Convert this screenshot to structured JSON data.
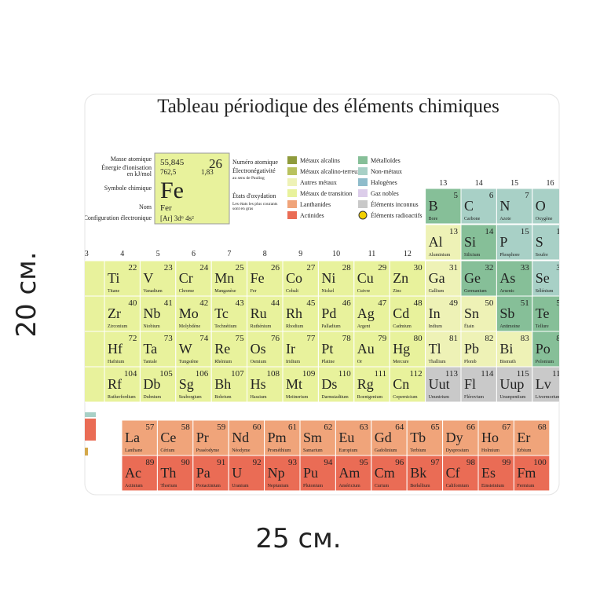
{
  "title": "Tableau périodique des éléments chimiques",
  "dimensions": {
    "height": "20 см.",
    "width": "25 см."
  },
  "key": {
    "mass": "55,845",
    "number": "26",
    "ionization": "762,5",
    "electronegativity": "1,83",
    "symbol": "Fe",
    "name": "Fer",
    "configuration": "[Ar] 3d⁶ 4s²",
    "color": "#e8f29c",
    "left_labels": [
      "Masse atomique",
      "Énergie d'ionisation",
      "en kJ/mol",
      "Symbole chimique",
      "Nom",
      "Configuration électronique"
    ],
    "right_labels": [
      "Numéro atomique",
      "Électronégativité",
      "au sens de Pauling",
      "États d'oxydation",
      "Les états les plus courants",
      "sont en gras"
    ]
  },
  "legend": [
    {
      "label": "Métaux alcalins",
      "color": "#8f9b3c"
    },
    {
      "label": "Métaux alcalino-terreux",
      "color": "#b9c25e"
    },
    {
      "label": "Autres métaux",
      "color": "#eef2b6"
    },
    {
      "label": "Métaux de transition",
      "color": "#e8f29c"
    },
    {
      "label": "Lanthanides",
      "color": "#f0a47a"
    },
    {
      "label": "Actinides",
      "color": "#ea6c55"
    },
    {
      "label": "Métalloïdes",
      "color": "#86bf98"
    },
    {
      "label": "Non-métaux",
      "color": "#a8d0c6"
    },
    {
      "label": "Halogènes",
      "color": "#8fbccb"
    },
    {
      "label": "Gaz nobles",
      "color": "#dccdea"
    },
    {
      "label": "Éléments inconnus",
      "color": "#c9c9c9"
    },
    {
      "label": "Éléments radioactifs",
      "color": "#f2d000"
    }
  ],
  "group_labels_low": [
    "3",
    "4",
    "5",
    "6",
    "7",
    "8",
    "9",
    "10",
    "11",
    "12"
  ],
  "group_labels_high": [
    "13",
    "14",
    "15",
    "16"
  ],
  "periods": [
    {
      "elements": [
        {
          "number": 5,
          "symbol": "B",
          "name": "Bore",
          "color": "#86bf98"
        },
        {
          "number": 6,
          "symbol": "C",
          "name": "Carbone",
          "color": "#a8d0c6"
        },
        {
          "number": 7,
          "symbol": "N",
          "name": "Azote",
          "color": "#a8d0c6"
        },
        {
          "number": 8,
          "symbol": "O",
          "name": "Oxygène",
          "color": "#a8d0c6"
        }
      ]
    },
    {
      "elements": [
        {
          "number": 13,
          "symbol": "Al",
          "name": "Aluminium",
          "color": "#eef2b6"
        },
        {
          "number": 14,
          "symbol": "Si",
          "name": "Silicium",
          "color": "#86bf98"
        },
        {
          "number": 15,
          "symbol": "P",
          "name": "Phosphore",
          "color": "#a8d0c6"
        },
        {
          "number": 16,
          "symbol": "S",
          "name": "Soufre",
          "color": "#a8d0c6"
        }
      ]
    },
    {
      "elements": [
        {
          "number": 22,
          "symbol": "Ti",
          "name": "Titane",
          "color": "#e8f29c"
        },
        {
          "number": 23,
          "symbol": "V",
          "name": "Vanadium",
          "color": "#e8f29c"
        },
        {
          "number": 24,
          "symbol": "Cr",
          "name": "Chrome",
          "color": "#e8f29c"
        },
        {
          "number": 25,
          "symbol": "Mn",
          "name": "Manganèse",
          "color": "#e8f29c"
        },
        {
          "number": 26,
          "symbol": "Fe",
          "name": "Fer",
          "color": "#e8f29c"
        },
        {
          "number": 27,
          "symbol": "Co",
          "name": "Cobalt",
          "color": "#e8f29c"
        },
        {
          "number": 28,
          "symbol": "Ni",
          "name": "Nickel",
          "color": "#e8f29c"
        },
        {
          "number": 29,
          "symbol": "Cu",
          "name": "Cuivre",
          "color": "#e8f29c"
        },
        {
          "number": 30,
          "symbol": "Zn",
          "name": "Zinc",
          "color": "#e8f29c"
        },
        {
          "number": 31,
          "symbol": "Ga",
          "name": "Gallium",
          "color": "#eef2b6"
        },
        {
          "number": 32,
          "symbol": "Ge",
          "name": "Germanium",
          "color": "#86bf98"
        },
        {
          "number": 33,
          "symbol": "As",
          "name": "Arsenic",
          "color": "#86bf98"
        },
        {
          "number": 34,
          "symbol": "Se",
          "name": "Sélénium",
          "color": "#a8d0c6"
        }
      ]
    },
    {
      "elements": [
        {
          "number": 40,
          "symbol": "Zr",
          "name": "Zirconium",
          "color": "#e8f29c"
        },
        {
          "number": 41,
          "symbol": "Nb",
          "name": "Niobium",
          "color": "#e8f29c"
        },
        {
          "number": 42,
          "symbol": "Mo",
          "name": "Molybdène",
          "color": "#e8f29c"
        },
        {
          "number": 43,
          "symbol": "Tc",
          "name": "Technétium",
          "color": "#e8f29c"
        },
        {
          "number": 44,
          "symbol": "Ru",
          "name": "Ruthénium",
          "color": "#e8f29c"
        },
        {
          "number": 45,
          "symbol": "Rh",
          "name": "Rhodium",
          "color": "#e8f29c"
        },
        {
          "number": 46,
          "symbol": "Pd",
          "name": "Palladium",
          "color": "#e8f29c"
        },
        {
          "number": 47,
          "symbol": "Ag",
          "name": "Argent",
          "color": "#e8f29c"
        },
        {
          "number": 48,
          "symbol": "Cd",
          "name": "Cadmium",
          "color": "#e8f29c"
        },
        {
          "number": 49,
          "symbol": "In",
          "name": "Indium",
          "color": "#eef2b6"
        },
        {
          "number": 50,
          "symbol": "Sn",
          "name": "Étain",
          "color": "#eef2b6"
        },
        {
          "number": 51,
          "symbol": "Sb",
          "name": "Antimoine",
          "color": "#86bf98"
        },
        {
          "number": 52,
          "symbol": "Te",
          "name": "Tellure",
          "color": "#86bf98"
        }
      ]
    },
    {
      "elements": [
        {
          "number": 72,
          "symbol": "Hf",
          "name": "Hafnium",
          "color": "#e8f29c"
        },
        {
          "number": 73,
          "symbol": "Ta",
          "name": "Tantale",
          "color": "#e8f29c"
        },
        {
          "number": 74,
          "symbol": "W",
          "name": "Tungstène",
          "color": "#e8f29c"
        },
        {
          "number": 75,
          "symbol": "Re",
          "name": "Rhénium",
          "color": "#e8f29c"
        },
        {
          "number": 76,
          "symbol": "Os",
          "name": "Osmium",
          "color": "#e8f29c"
        },
        {
          "number": 77,
          "symbol": "Ir",
          "name": "Iridium",
          "color": "#e8f29c"
        },
        {
          "number": 78,
          "symbol": "Pt",
          "name": "Platine",
          "color": "#e8f29c"
        },
        {
          "number": 79,
          "symbol": "Au",
          "name": "Or",
          "color": "#e8f29c"
        },
        {
          "number": 80,
          "symbol": "Hg",
          "name": "Mercure",
          "color": "#e8f29c"
        },
        {
          "number": 81,
          "symbol": "Tl",
          "name": "Thallium",
          "color": "#eef2b6"
        },
        {
          "number": 82,
          "symbol": "Pb",
          "name": "Plomb",
          "color": "#eef2b6"
        },
        {
          "number": 83,
          "symbol": "Bi",
          "name": "Bismuth",
          "color": "#eef2b6"
        },
        {
          "number": 84,
          "symbol": "Po",
          "name": "Polonium",
          "color": "#86bf98"
        }
      ]
    },
    {
      "elements": [
        {
          "number": 104,
          "symbol": "Rf",
          "name": "Rutherfordium",
          "color": "#e8f29c"
        },
        {
          "number": 105,
          "symbol": "Db",
          "name": "Dubnium",
          "color": "#e8f29c"
        },
        {
          "number": 106,
          "symbol": "Sg",
          "name": "Seaborgium",
          "color": "#e8f29c"
        },
        {
          "number": 107,
          "symbol": "Bh",
          "name": "Bohrium",
          "color": "#e8f29c"
        },
        {
          "number": 108,
          "symbol": "Hs",
          "name": "Hassium",
          "color": "#e8f29c"
        },
        {
          "number": 109,
          "symbol": "Mt",
          "name": "Meitnerium",
          "color": "#e8f29c"
        },
        {
          "number": 110,
          "symbol": "Ds",
          "name": "Darmstadtium",
          "color": "#e8f29c"
        },
        {
          "number": 111,
          "symbol": "Rg",
          "name": "Roentgenium",
          "color": "#e8f29c"
        },
        {
          "number": 112,
          "symbol": "Cn",
          "name": "Copernicium",
          "color": "#e8f29c"
        },
        {
          "number": 113,
          "symbol": "Uut",
          "name": "Ununtrium",
          "color": "#c9c9c9"
        },
        {
          "number": 114,
          "symbol": "Fl",
          "name": "Flérovium",
          "color": "#c9c9c9"
        },
        {
          "number": 115,
          "symbol": "Uup",
          "name": "Ununpentium",
          "color": "#c9c9c9"
        },
        {
          "number": 116,
          "symbol": "Lv",
          "name": "Livermorium",
          "color": "#c9c9c9"
        }
      ]
    },
    {
      "elements": [
        {
          "number": 57,
          "symbol": "La",
          "name": "Lanthane",
          "color": "#f0a47a"
        },
        {
          "number": 58,
          "symbol": "Ce",
          "name": "Cérium",
          "color": "#f0a47a"
        },
        {
          "number": 59,
          "symbol": "Pr",
          "name": "Praséodyme",
          "color": "#f0a47a"
        },
        {
          "number": 60,
          "symbol": "Nd",
          "name": "Néodyme",
          "color": "#f0a47a"
        },
        {
          "number": 61,
          "symbol": "Pm",
          "name": "Prométhium",
          "color": "#f0a47a"
        },
        {
          "number": 62,
          "symbol": "Sm",
          "name": "Samarium",
          "color": "#f0a47a"
        },
        {
          "number": 63,
          "symbol": "Eu",
          "name": "Europium",
          "color": "#f0a47a"
        },
        {
          "number": 64,
          "symbol": "Gd",
          "name": "Gadolinium",
          "color": "#f0a47a"
        },
        {
          "number": 65,
          "symbol": "Tb",
          "name": "Terbium",
          "color": "#f0a47a"
        },
        {
          "number": 66,
          "symbol": "Dy",
          "name": "Dysprosium",
          "color": "#f0a47a"
        },
        {
          "number": 67,
          "symbol": "Ho",
          "name": "Holmium",
          "color": "#f0a47a"
        },
        {
          "number": 68,
          "symbol": "Er",
          "name": "Erbium",
          "color": "#f0a47a"
        }
      ]
    },
    {
      "elements": [
        {
          "number": 89,
          "symbol": "Ac",
          "name": "Actinium",
          "color": "#ea6c55"
        },
        {
          "number": 90,
          "symbol": "Th",
          "name": "Thorium",
          "color": "#ea6c55"
        },
        {
          "number": 91,
          "symbol": "Pa",
          "name": "Protactinium",
          "color": "#ea6c55"
        },
        {
          "number": 92,
          "symbol": "U",
          "name": "Uranium",
          "color": "#ea6c55"
        },
        {
          "number": 93,
          "symbol": "Np",
          "name": "Neptunium",
          "color": "#ea6c55"
        },
        {
          "number": 94,
          "symbol": "Pu",
          "name": "Plutonium",
          "color": "#ea6c55"
        },
        {
          "number": 95,
          "symbol": "Am",
          "name": "Américium",
          "color": "#ea6c55"
        },
        {
          "number": 96,
          "symbol": "Cm",
          "name": "Curium",
          "color": "#ea6c55"
        },
        {
          "number": 97,
          "symbol": "Bk",
          "name": "Berkélium",
          "color": "#ea6c55"
        },
        {
          "number": 98,
          "symbol": "Cf",
          "name": "Californium",
          "color": "#ea6c55"
        },
        {
          "number": 99,
          "symbol": "Es",
          "name": "Einsteinium",
          "color": "#ea6c55"
        },
        {
          "number": 100,
          "symbol": "Fm",
          "name": "Fermium",
          "color": "#ea6c55"
        }
      ]
    }
  ]
}
